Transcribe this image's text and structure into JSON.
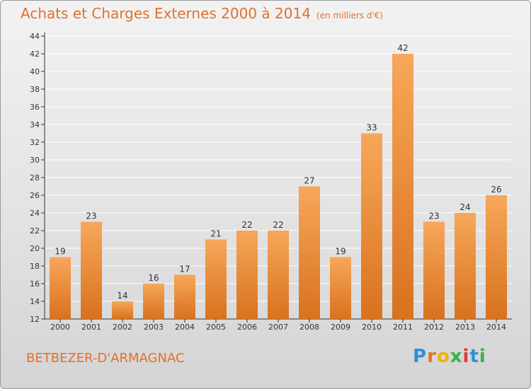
{
  "title": "Achats et Charges Externes 2000 à 2014",
  "subtitle": "(en milliers d'€)",
  "location": "BETBEZER-D'ARMAGNAC",
  "logo": {
    "text": "Proxiti",
    "colors": [
      "#2f8fd8",
      "#e3702a",
      "#f0b400",
      "#3bb04a",
      "#e03a3a",
      "#2f8fd8",
      "#3bb04a"
    ]
  },
  "colors": {
    "bar_top": "#f7a75a",
    "bar_bottom": "#d8721e",
    "text": "#e3702a",
    "grid": "#ffffff"
  },
  "chart_data": {
    "type": "bar",
    "categories": [
      "2000",
      "2001",
      "2002",
      "2003",
      "2004",
      "2005",
      "2006",
      "2007",
      "2008",
      "2009",
      "2010",
      "2011",
      "2012",
      "2013",
      "2014"
    ],
    "values": [
      19,
      23,
      14,
      16,
      17,
      21,
      22,
      22,
      27,
      19,
      33,
      42,
      23,
      24,
      26
    ],
    "ylim": [
      12,
      44
    ],
    "yticks": [
      12,
      14,
      16,
      18,
      20,
      22,
      24,
      26,
      28,
      30,
      32,
      34,
      36,
      38,
      40,
      42,
      44
    ],
    "grid": true,
    "legend": "none"
  }
}
